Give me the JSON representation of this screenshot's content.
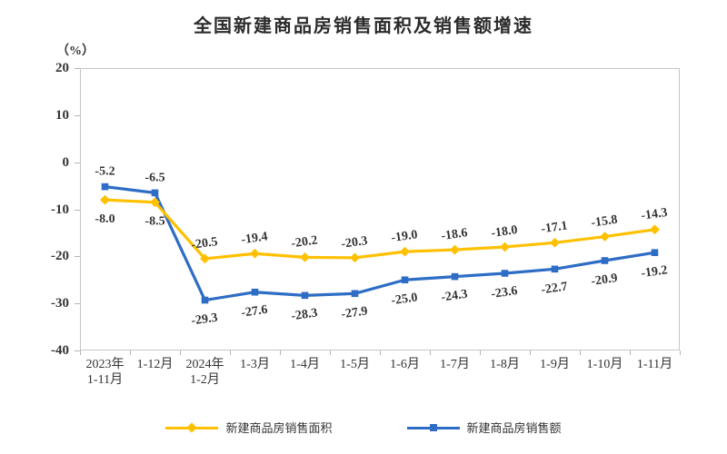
{
  "title": "全国新建商品房销售面积及销售额增速",
  "chart_data": {
    "type": "line",
    "title": "全国新建商品房销售面积及销售额增速",
    "ylabel": "（%）",
    "ylim": [
      -40,
      20
    ],
    "yticks": [
      20,
      10,
      0,
      -10,
      -20,
      -30,
      -40
    ],
    "grid": false,
    "legend_position": "bottom",
    "categories": [
      "2023年\n1-11月",
      "1-12月",
      "2024年\n1-2月",
      "1-3月",
      "1-4月",
      "1-5月",
      "1-6月",
      "1-7月",
      "1-8月",
      "1-9月",
      "1-10月",
      "1-11月"
    ],
    "series": [
      {
        "name": "新建商品房销售面积",
        "color": "#FFC000",
        "marker": "diamond",
        "values": [
          -8.0,
          -8.5,
          -20.5,
          -19.4,
          -20.2,
          -20.3,
          -19.0,
          -18.6,
          -18.0,
          -17.1,
          -15.8,
          -14.3
        ]
      },
      {
        "name": "新建商品房销售额",
        "color": "#2E6DC5",
        "marker": "square",
        "values": [
          -5.2,
          -6.5,
          -29.3,
          -27.6,
          -28.3,
          -27.9,
          -25.0,
          -24.3,
          -23.6,
          -22.7,
          -20.9,
          -19.2
        ]
      }
    ],
    "colors": {
      "text": "#333333",
      "axis": "#c6c6c6"
    }
  }
}
